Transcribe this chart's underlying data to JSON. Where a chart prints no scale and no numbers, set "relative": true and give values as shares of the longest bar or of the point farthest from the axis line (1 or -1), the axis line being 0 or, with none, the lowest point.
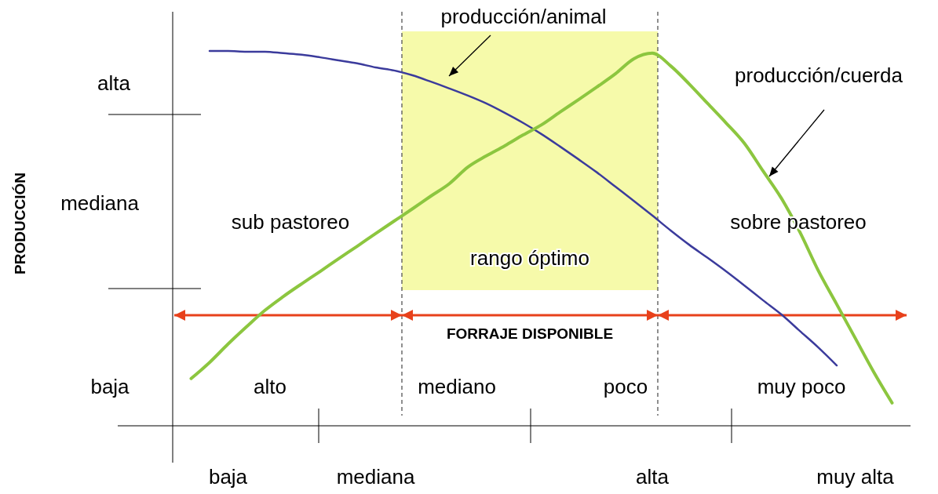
{
  "chart_data": {
    "type": "line",
    "relative": true,
    "categories": [
      null,
      null,
      null,
      "baja",
      null,
      null,
      null,
      null,
      null,
      null,
      null,
      "mediana",
      null,
      null,
      null,
      null,
      null,
      null,
      null,
      null,
      null,
      null,
      null,
      null,
      null,
      null,
      "alta",
      null,
      null,
      null,
      null,
      null,
      null,
      null,
      null,
      null,
      null,
      "muy alta",
      null,
      null,
      null
    ],
    "series": [
      {
        "name": "producción/animal",
        "color": "#3b3b9c",
        "values": [
          null,
          null,
          1.0,
          1.0,
          0.998,
          0.998,
          0.994,
          0.99,
          0.983,
          0.975,
          0.967,
          0.956,
          0.948,
          0.935,
          0.918,
          0.9,
          0.881,
          0.86,
          0.835,
          0.808,
          0.778,
          0.745,
          0.711,
          0.676,
          0.638,
          0.6,
          0.561,
          0.521,
          0.483,
          0.448,
          0.412,
          0.374,
          0.335,
          0.297,
          0.253,
          0.209,
          0.161,
          null,
          null,
          null,
          null
        ]
      },
      {
        "name": "producción/cuerda",
        "color": "#8cc63f",
        "values": [
          null,
          0.126,
          0.169,
          0.218,
          0.264,
          0.308,
          0.345,
          0.379,
          0.412,
          0.446,
          0.479,
          0.513,
          0.546,
          0.579,
          0.613,
          0.646,
          0.69,
          0.72,
          0.747,
          0.776,
          0.803,
          0.837,
          0.87,
          0.904,
          0.939,
          0.979,
          0.994,
          0.96,
          0.912,
          0.86,
          0.808,
          0.753,
          0.68,
          0.607,
          0.517,
          0.414,
          0.324,
          0.234,
          0.144,
          0.061,
          null
        ]
      }
    ],
    "ref_lines": [
      {
        "axis": "y",
        "value": 0.295,
        "label": "FORRAJE DISPONIBLE",
        "color": "#e8411b",
        "line_style": "solid"
      }
    ],
    "annotations": [
      "alta",
      "mediana",
      "baja",
      "sub pastoreo",
      "sobre pastoreo",
      "rango óptimo",
      "alto",
      "mediano",
      "poco",
      "muy poco",
      "PRODUCCIÓN"
    ],
    "grid": false,
    "legend": false,
    "marker": "none",
    "line_style": "solid"
  }
}
